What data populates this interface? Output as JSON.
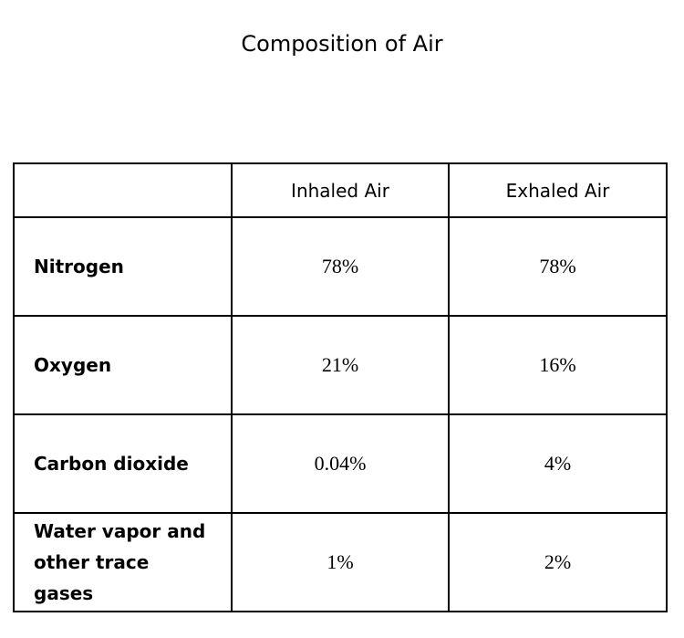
{
  "title": "Composition of Air",
  "table": {
    "header": [
      "",
      "Inhaled Air",
      "Exhaled Air"
    ],
    "rows": [
      [
        "Nitrogen",
        "78%",
        "78%"
      ],
      [
        "Oxygen",
        "21%",
        "16%"
      ],
      [
        "Carbon dioxide",
        "0.04%",
        "4%"
      ],
      [
        "Water vapor and other trace gases",
        "1%",
        "2%"
      ]
    ]
  }
}
